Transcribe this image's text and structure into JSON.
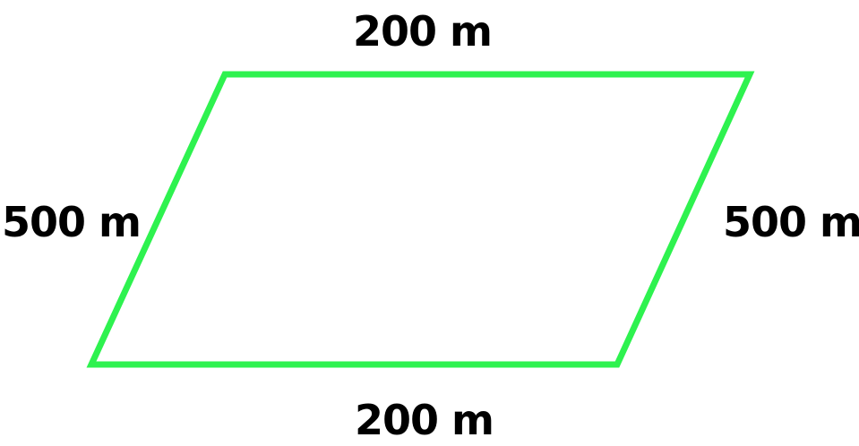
{
  "diagram": {
    "shape": "parallelogram",
    "stroke_color": "#2ef24f",
    "text_color": "#000000",
    "background": "#ffffff",
    "labels": {
      "top": "200 m",
      "bottom": "200 m",
      "left": "500 m",
      "right": "500 m"
    }
  }
}
